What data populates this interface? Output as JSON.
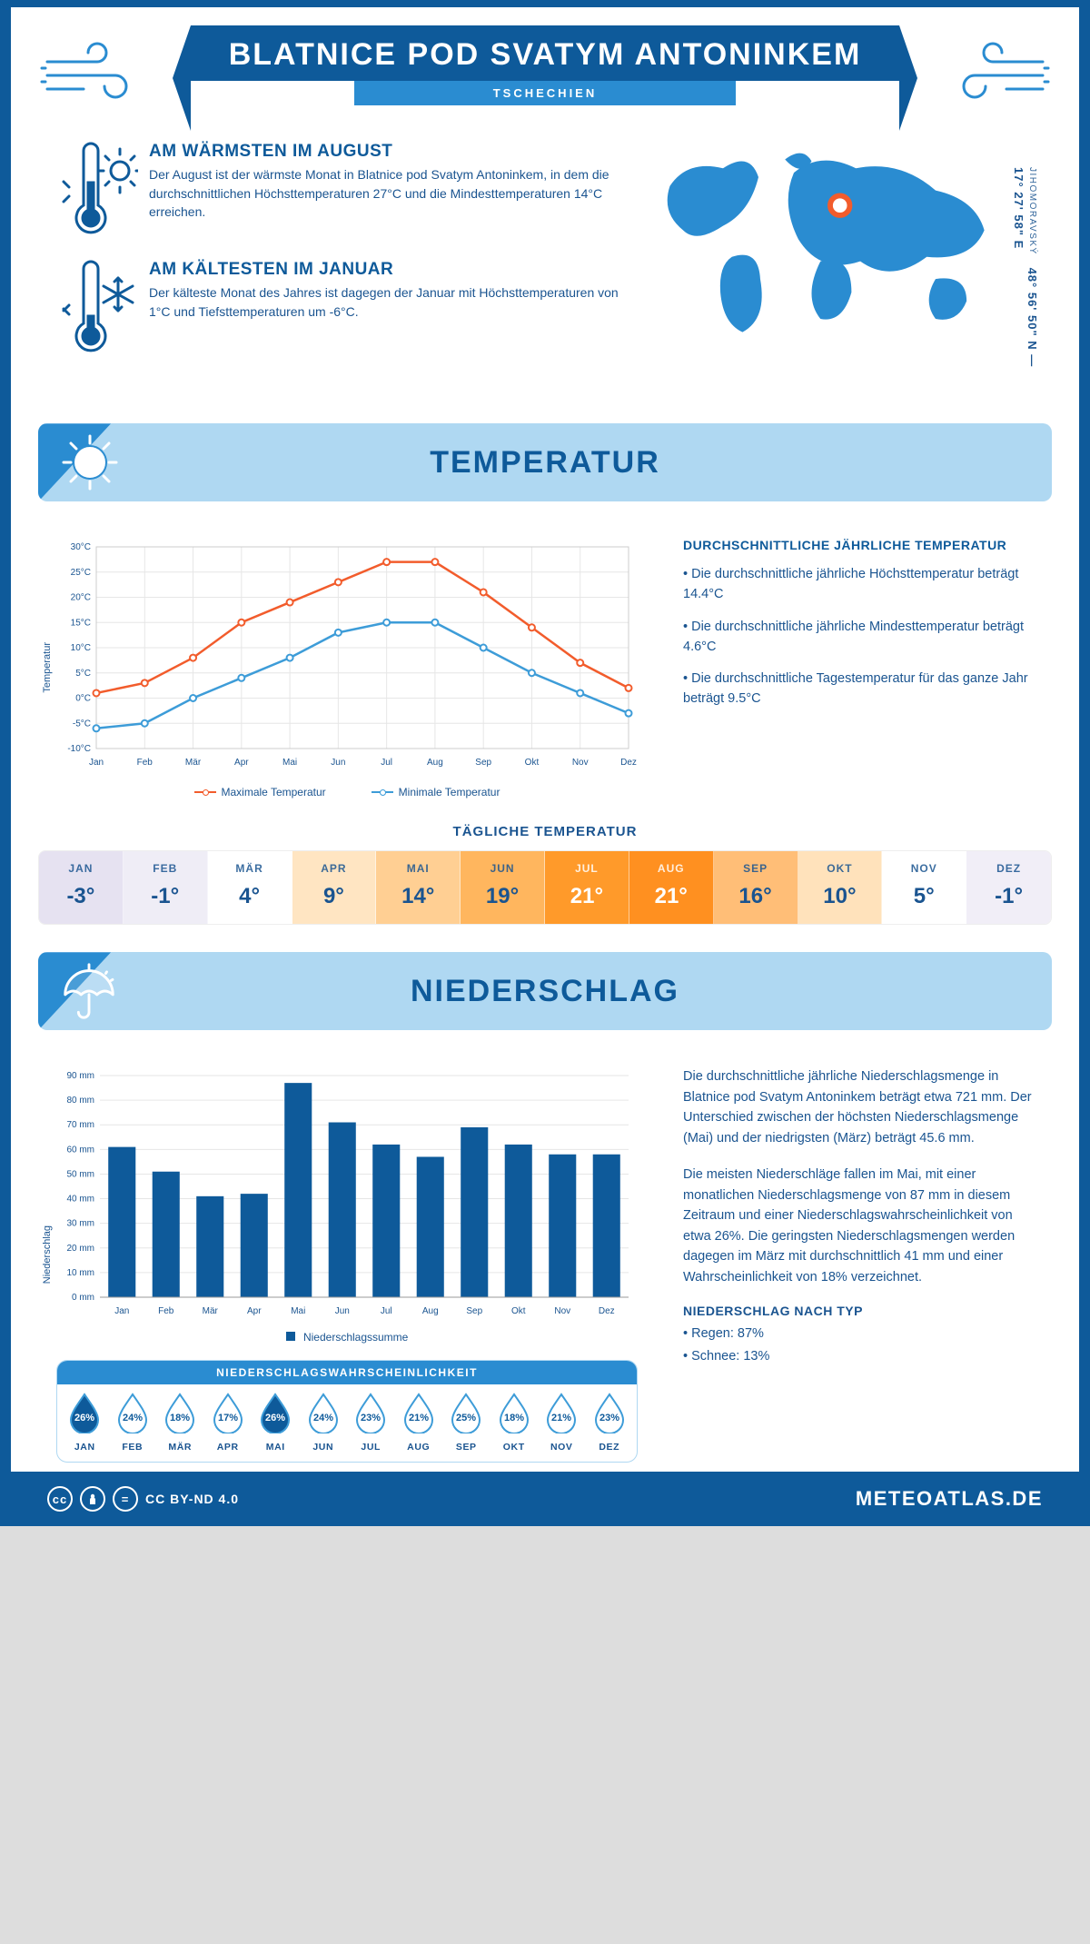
{
  "header": {
    "title": "BLATNICE POD SVATYM ANTONINKEM",
    "country": "TSCHECHIEN"
  },
  "coords": {
    "lat": "48° 56' 50\" N",
    "sep": " — ",
    "lon": "17° 27' 58\" E",
    "region": "JIHOMORAVSKÝ"
  },
  "warm": {
    "title": "AM WÄRMSTEN IM AUGUST",
    "body": "Der August ist der wärmste Monat in Blatnice pod Svatym Antoninkem, in dem die durchschnittlichen Höchsttemperaturen 27°C und die Mindesttemperaturen 14°C erreichen."
  },
  "cold": {
    "title": "AM KÄLTESTEN IM JANUAR",
    "body": "Der kälteste Monat des Jahres ist dagegen der Januar mit Höchsttemperaturen von 1°C und Tiefsttemperaturen um -6°C."
  },
  "temp_section": {
    "heading": "TEMPERATUR",
    "notes_title": "DURCHSCHNITTLICHE JÄHRLICHE TEMPERATUR",
    "note1": "• Die durchschnittliche jährliche Höchsttemperatur beträgt 14.4°C",
    "note2": "• Die durchschnittliche jährliche Mindesttemperatur beträgt 4.6°C",
    "note3": "• Die durchschnittliche Tagestemperatur für das ganze Jahr beträgt 9.5°C",
    "y_label": "Temperatur",
    "daily_title": "TÄGLICHE TEMPERATUR",
    "legend_max": "Maximale Temperatur",
    "legend_min": "Minimale Temperatur"
  },
  "temp_chart": {
    "type": "line",
    "months": [
      "Jan",
      "Feb",
      "Mär",
      "Apr",
      "Mai",
      "Jun",
      "Jul",
      "Aug",
      "Sep",
      "Okt",
      "Nov",
      "Dez"
    ],
    "max_series": [
      1,
      3,
      8,
      15,
      19,
      23,
      27,
      27,
      21,
      14,
      7,
      2
    ],
    "min_series": [
      -6,
      -5,
      0,
      4,
      8,
      13,
      15,
      15,
      10,
      5,
      1,
      -3
    ],
    "max_color": "#f25c2c",
    "min_color": "#3d9cd8",
    "ymin": -10,
    "ymax": 30,
    "ytick_step": 5,
    "grid_color": "#e6e6e6",
    "line_width": 2.5,
    "marker_radius": 3.5,
    "axis_font": 10
  },
  "daily_tiles": {
    "months": [
      "JAN",
      "FEB",
      "MÄR",
      "APR",
      "MAI",
      "JUN",
      "JUL",
      "AUG",
      "SEP",
      "OKT",
      "NOV",
      "DEZ"
    ],
    "values": [
      "-3°",
      "-1°",
      "4°",
      "9°",
      "14°",
      "19°",
      "21°",
      "21°",
      "16°",
      "10°",
      "5°",
      "-1°"
    ],
    "bg": [
      "#e6e2f1",
      "#efedf6",
      "#ffffff",
      "#ffe5c2",
      "#ffcf93",
      "#ffb65e",
      "#ff9a2a",
      "#ff9020",
      "#ffbe77",
      "#ffe2bb",
      "#ffffff",
      "#f1eef7"
    ],
    "fg": [
      "#1a5490",
      "#1a5490",
      "#1a5490",
      "#1a5490",
      "#1a5490",
      "#1a5490",
      "#ffffff",
      "#ffffff",
      "#1a5490",
      "#1a5490",
      "#1a5490",
      "#1a5490"
    ]
  },
  "precip_section": {
    "heading": "NIEDERSCHLAG",
    "y_label": "Niederschlag",
    "bar_legend": "Niederschlagssumme",
    "para1": "Die durchschnittliche jährliche Niederschlagsmenge in Blatnice pod Svatym Antoninkem beträgt etwa 721 mm. Der Unterschied zwischen der höchsten Niederschlagsmenge (Mai) und der niedrigsten (März) beträgt 45.6 mm.",
    "para2": "Die meisten Niederschläge fallen im Mai, mit einer monatlichen Niederschlagsmenge von 87 mm in diesem Zeitraum und einer Niederschlagswahrscheinlichkeit von etwa 26%. Die geringsten Niederschlagsmengen werden dagegen im März mit durchschnittlich 41 mm und einer Wahrscheinlichkeit von 18% verzeichnet.",
    "type_title": "NIEDERSCHLAG NACH TYP",
    "type1": "• Regen: 87%",
    "type2": "• Schnee: 13%"
  },
  "precip_chart": {
    "type": "bar",
    "months": [
      "Jan",
      "Feb",
      "Mär",
      "Apr",
      "Mai",
      "Jun",
      "Jul",
      "Aug",
      "Sep",
      "Okt",
      "Nov",
      "Dez"
    ],
    "values": [
      61,
      51,
      41,
      42,
      87,
      71,
      62,
      57,
      69,
      62,
      58,
      58
    ],
    "bar_color": "#0e5a9a",
    "ymin": 0,
    "ymax": 90,
    "ytick_step": 10,
    "unit": "mm",
    "grid_color": "#e6e6e6",
    "bar_width_ratio": 0.62,
    "axis_font": 10
  },
  "prob_box": {
    "title": "NIEDERSCHLAGSWAHRSCHEINLICHKEIT",
    "months": [
      "JAN",
      "FEB",
      "MÄR",
      "APR",
      "MAI",
      "JUN",
      "JUL",
      "AUG",
      "SEP",
      "OKT",
      "NOV",
      "DEZ"
    ],
    "values": [
      "26%",
      "24%",
      "18%",
      "17%",
      "26%",
      "24%",
      "23%",
      "21%",
      "25%",
      "18%",
      "21%",
      "23%"
    ],
    "fill": [
      1,
      0,
      0,
      0,
      1,
      0,
      0,
      0,
      0,
      0,
      0,
      0
    ],
    "fill_color": "#0e5a9a",
    "outline_color": "#3d9cd8"
  },
  "footer": {
    "license": "CC BY-ND 4.0",
    "site": "METEOATLAS.DE"
  },
  "palette": {
    "deep_blue": "#0e5a9a",
    "bright_blue": "#2a8cd1",
    "light_blue": "#afd8f2",
    "orange": "#f25c2c"
  }
}
